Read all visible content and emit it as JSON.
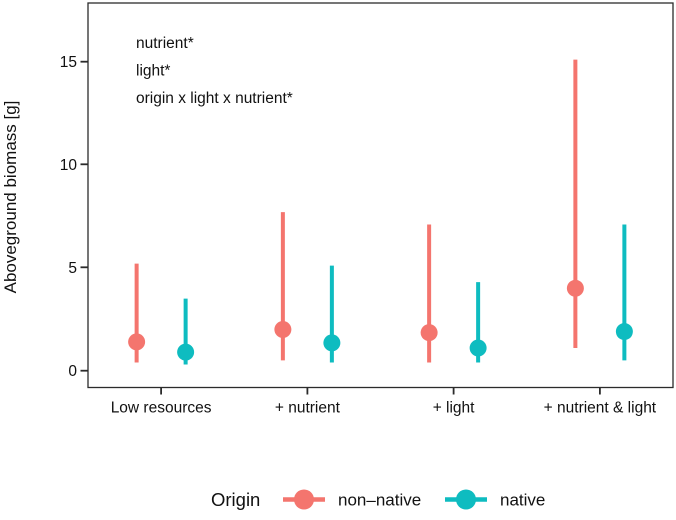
{
  "chart_data": {
    "type": "pointrange",
    "title": "",
    "xlabel": "",
    "ylabel": "Aboveground biomass [g]",
    "categories": [
      "Low resources",
      "+ nutrient",
      "+ light",
      "+ nutrient & light"
    ],
    "y_ticks": [
      "0",
      "5",
      "10",
      "15"
    ],
    "y_tick_values": [
      0,
      5,
      10,
      15
    ],
    "ylim": [
      -0.8,
      17.9
    ],
    "grid": "off",
    "legend_position": "bottom",
    "annotations": [
      "nutrient*",
      "light*",
      "origin x light x nutrient*"
    ],
    "legend": {
      "title": "Origin",
      "entries": [
        "non–native",
        "native"
      ]
    },
    "series": [
      {
        "name": "non–native",
        "color": "#F4756E",
        "points": [
          {
            "category": "Low resources",
            "mean": 1.4,
            "low": 0.4,
            "high": 5.2
          },
          {
            "category": "+ nutrient",
            "mean": 2.0,
            "low": 0.5,
            "high": 7.7
          },
          {
            "category": "+ light",
            "mean": 1.85,
            "low": 0.4,
            "high": 7.1
          },
          {
            "category": "+ nutrient & light",
            "mean": 4.0,
            "low": 1.1,
            "high": 15.1
          }
        ]
      },
      {
        "name": "native",
        "color": "#0EBCC0",
        "points": [
          {
            "category": "Low resources",
            "mean": 0.9,
            "low": 0.3,
            "high": 3.5
          },
          {
            "category": "+ nutrient",
            "mean": 1.35,
            "low": 0.4,
            "high": 5.1
          },
          {
            "category": "+ light",
            "mean": 1.1,
            "low": 0.4,
            "high": 4.3
          },
          {
            "category": "+ nutrient & light",
            "mean": 1.9,
            "low": 0.5,
            "high": 7.1
          }
        ]
      }
    ]
  }
}
